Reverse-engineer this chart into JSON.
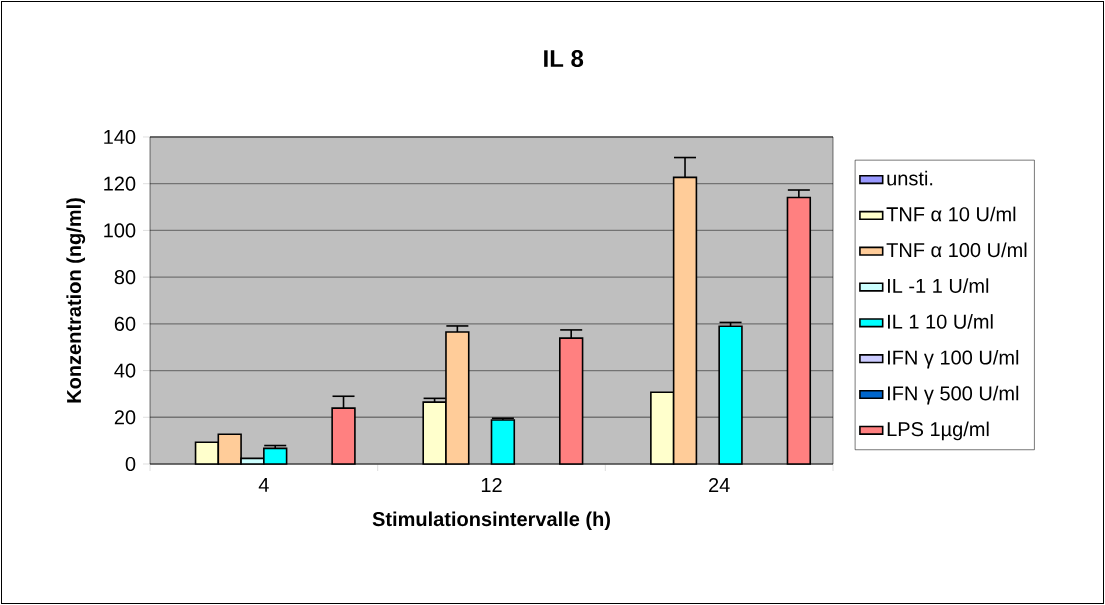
{
  "chart_data": {
    "type": "bar",
    "title": "IL 8",
    "xlabel": "Stimulationsintervalle (h)",
    "ylabel": "Konzentration (ng/ml)",
    "categories": [
      "4",
      "12",
      "24"
    ],
    "series": [
      {
        "name": "unsti.",
        "color": "#9999ff",
        "values": [
          null,
          null,
          null
        ]
      },
      {
        "name": "TNF α 10 U/ml",
        "color": "#ffffcc",
        "values": [
          9.3,
          26.5,
          30.7
        ],
        "errors": [
          null,
          1.6,
          null
        ]
      },
      {
        "name": "TNF α 100 U/ml",
        "color": "#ffcc99",
        "values": [
          12.7,
          56.5,
          122.7
        ],
        "errors": [
          null,
          2.6,
          8.5
        ]
      },
      {
        "name": "IL -1  1 U/ml",
        "color": "#ccffff",
        "values": [
          2.4,
          null,
          null
        ]
      },
      {
        "name": "IL 1  10 U/ml",
        "color": "#00ffff",
        "values": [
          6.7,
          18.8,
          59.0
        ],
        "errors": [
          1.2,
          0.8,
          1.6
        ]
      },
      {
        "name": "IFN γ 100 U/ml",
        "color": "#ccccff",
        "values": [
          null,
          null,
          null
        ]
      },
      {
        "name": "IFN γ 500 U/ml",
        "color": "#0066cc",
        "values": [
          null,
          null,
          null
        ]
      },
      {
        "name": "LPS 1µg/ml",
        "color": "#ff8080",
        "values": [
          23.9,
          53.9,
          114.1
        ],
        "errors": [
          5.1,
          3.5,
          3.2
        ]
      }
    ],
    "ylim": [
      0,
      140
    ],
    "yticks": [
      0,
      20,
      40,
      60,
      80,
      100,
      120,
      140
    ],
    "grid": "y",
    "legend": "right"
  }
}
